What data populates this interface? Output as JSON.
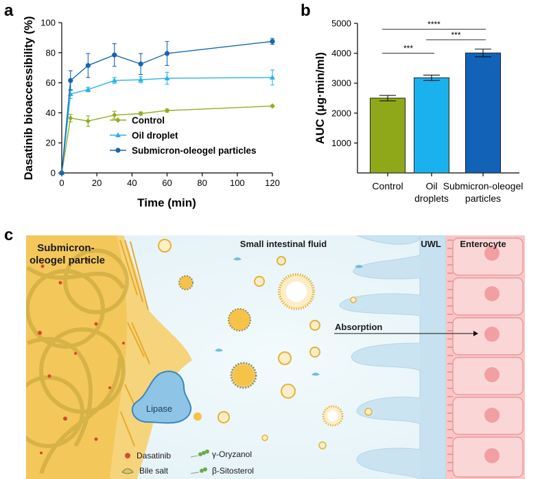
{
  "panels": {
    "a": "a",
    "b": "b",
    "c": "c"
  },
  "chart_data": [
    {
      "type": "line",
      "panel": "a",
      "title": "",
      "xlabel": "Time (min)",
      "ylabel": "Dasatinib bioaccessibility (%)",
      "xlim": [
        0,
        120
      ],
      "ylim": [
        0,
        100
      ],
      "xticks": [
        0,
        20,
        40,
        60,
        80,
        100,
        120
      ],
      "yticks": [
        0,
        20,
        40,
        60,
        80,
        100
      ],
      "x": [
        0,
        5,
        15,
        30,
        45,
        60,
        120
      ],
      "series": [
        {
          "name": "Control",
          "color": "#8fae1f",
          "marker": "diamond",
          "values": [
            0,
            36.5,
            34.5,
            38.5,
            39.5,
            41.5,
            44.5
          ],
          "errors": [
            0,
            2.5,
            3.5,
            2.5,
            1,
            1,
            0.5
          ]
        },
        {
          "name": "Oil droplet",
          "color": "#29b2ea",
          "marker": "triangle",
          "values": [
            0,
            52.5,
            55.5,
            61.5,
            62,
            63,
            63.5
          ],
          "errors": [
            0,
            3,
            1.5,
            2,
            2,
            4,
            5
          ]
        },
        {
          "name": "Submicron-oleogel particles",
          "color": "#1565b4",
          "marker": "circle",
          "values": [
            0,
            61.5,
            71.5,
            78.5,
            72.5,
            79.5,
            87.5
          ],
          "errors": [
            0,
            6.5,
            8,
            7.5,
            7,
            8,
            2
          ]
        }
      ],
      "legend": "bottom-right"
    },
    {
      "type": "bar",
      "panel": "b",
      "title": "",
      "xlabel": "",
      "ylabel": "AUC (μg·min/ml)",
      "ylim": [
        0,
        5000
      ],
      "yticks": [
        1000,
        2000,
        3000,
        4000,
        5000
      ],
      "categories": [
        [
          "Control"
        ],
        [
          "Oil",
          "droplets"
        ],
        [
          "Submicron-oleogel",
          "particles"
        ]
      ],
      "values": [
        2500,
        3180,
        4010
      ],
      "errors": [
        90,
        90,
        130
      ],
      "colors": [
        "#8fa81a",
        "#1ab2ee",
        "#1262b8"
      ],
      "significance": [
        {
          "from": 0,
          "to": 2,
          "label": "****",
          "y": 4800
        },
        {
          "from": 1,
          "to": 2,
          "label": "***",
          "y": 4450
        },
        {
          "from": 0,
          "to": 1,
          "label": "***",
          "y": 4000
        }
      ]
    }
  ],
  "schematic": {
    "particle_label": [
      "Submicron-",
      "oleogel particle"
    ],
    "fluid_label": "Small intestinal fluid",
    "uwl_label": "UWL",
    "enterocyte_label": "Enterocyte",
    "absorption_label": "Absorption",
    "lipase_label": "Lipase",
    "legend": {
      "dasatinib": "Dasatinib",
      "oryzanol": "γ-Oryzanol",
      "bile_salt": "Bile salt",
      "sitosterol": "β-Sitosterol"
    }
  }
}
